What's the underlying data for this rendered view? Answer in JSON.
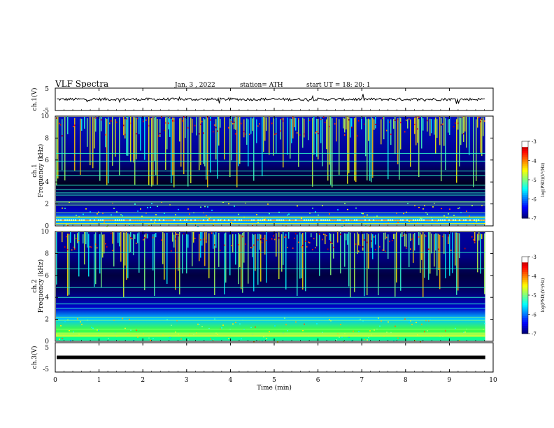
{
  "header": {
    "title": "VLF  Spectra",
    "date": "Jan. 3  , 2022",
    "station": "station= ATH",
    "start": "start  UT  =    18: 20: 1"
  },
  "colors": {
    "background": "#ffffff",
    "axis": "#000000",
    "spectrogram_floor": "#000000",
    "spectrogram_low": "#00008b",
    "spectrogram_mid": "#00ffff",
    "spectrogram_high": "#ffff00",
    "spectrogram_peak": "#ff0000"
  },
  "chart_data": [
    {
      "type": "line",
      "name": "ch1-waveform",
      "ylabel": "ch.1(V)",
      "ylim": [
        -5,
        5
      ],
      "yticks": [
        "5",
        "-5"
      ],
      "xlim": [
        0,
        10
      ],
      "series": [
        {
          "mean": 0,
          "noise_amplitude": 1.2
        }
      ]
    },
    {
      "type": "heatmap",
      "name": "ch1-spectrogram",
      "ylabel": "ch.1 Frequency (kHz)",
      "ylim": [
        0,
        10
      ],
      "yticks": [
        "0",
        "2",
        "4",
        "6",
        "8",
        "10"
      ],
      "xlim": [
        0,
        10
      ],
      "colorbar": {
        "label": "log(PSD)(V²/Hz)",
        "range": [
          -7,
          -3
        ],
        "ticks": [
          "-3",
          "-4",
          "-5",
          "-6",
          "-7"
        ]
      },
      "spectral_lines_khz": [
        0.2,
        0.5,
        0.8,
        1.2,
        1.9,
        2.1,
        2.2,
        2.8,
        3.0,
        3.3,
        3.7,
        4.6,
        5.0,
        5.9,
        6.6
      ]
    },
    {
      "type": "heatmap",
      "name": "ch2-spectrogram",
      "ylabel": "ch.2 Frequency (kHz)",
      "ylim": [
        0,
        10
      ],
      "yticks": [
        "0",
        "2",
        "4",
        "6",
        "8",
        "10"
      ],
      "xlim": [
        0,
        10
      ],
      "colorbar": {
        "label": "log(PSD)(V²/Hz)",
        "range": [
          -7,
          -3
        ],
        "ticks": [
          "-3",
          "-4",
          "-5",
          "-6",
          "-7"
        ]
      },
      "spectral_lines_khz": [
        0.5,
        1.1,
        1.9,
        2.2,
        3.0,
        3.4,
        4.0,
        4.9,
        6.6,
        8.1
      ]
    },
    {
      "type": "line",
      "name": "ch3-waveform",
      "ylabel": "ch.3(V)",
      "ylim": [
        -5,
        5
      ],
      "yticks": [
        "5",
        "-5"
      ],
      "xlim": [
        0,
        10
      ],
      "series": [
        {
          "mean": 0,
          "noise_amplitude": 0.2
        }
      ]
    }
  ],
  "xaxis": {
    "label": "Time  (min)",
    "range": [
      0,
      10
    ],
    "ticks": [
      "0",
      "1",
      "2",
      "3",
      "4",
      "5",
      "6",
      "7",
      "8",
      "9",
      "10"
    ],
    "data_end": 9.82
  }
}
